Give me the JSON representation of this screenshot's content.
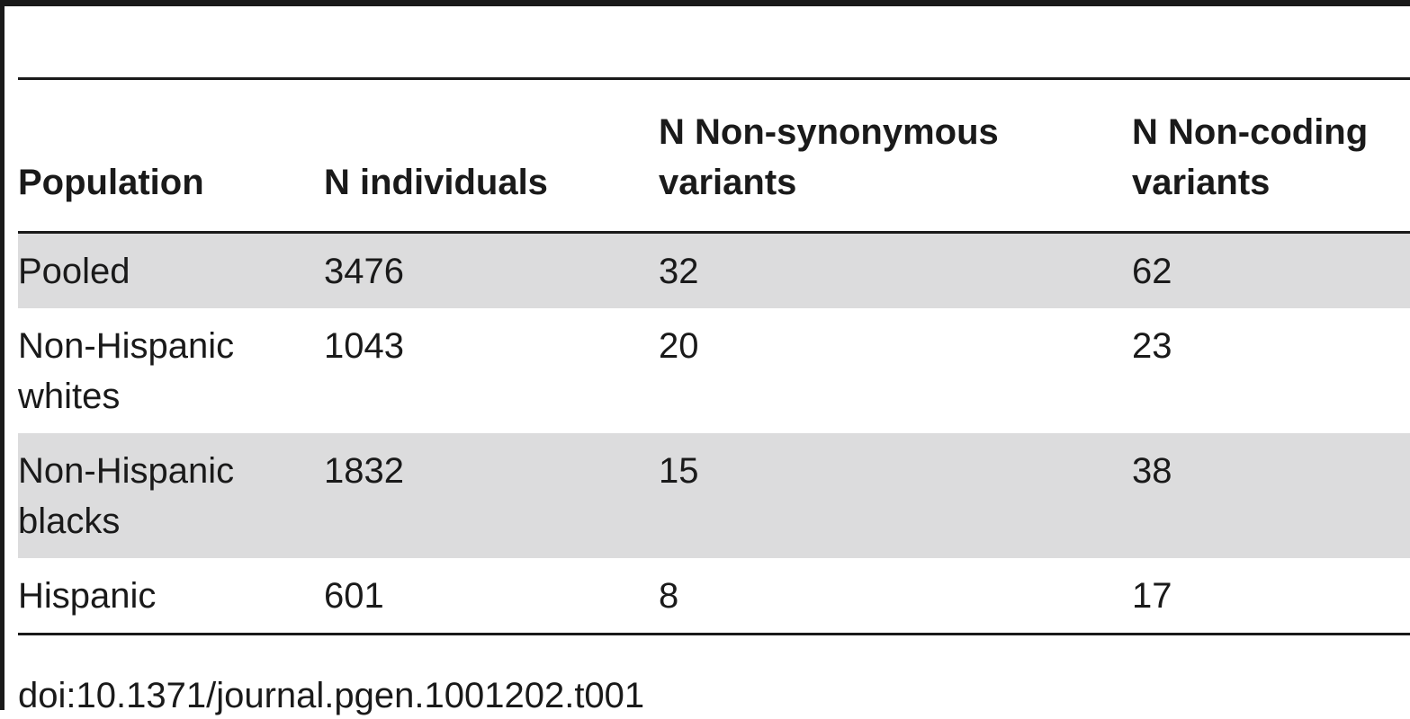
{
  "table": {
    "headers": [
      [
        "Population"
      ],
      [
        "N individuals"
      ],
      [
        "N Non-synonymous",
        "variants"
      ],
      [
        "N Non-coding",
        "variants"
      ]
    ],
    "rows": [
      {
        "cells": [
          [
            "Pooled"
          ],
          "3476",
          "32",
          "62"
        ],
        "shaded": true
      },
      {
        "cells": [
          [
            "Non-Hispanic",
            "whites"
          ],
          "1043",
          "20",
          "23"
        ],
        "shaded": false
      },
      {
        "cells": [
          [
            "Non-Hispanic",
            "blacks"
          ],
          "1832",
          "15",
          "38"
        ],
        "shaded": true
      },
      {
        "cells": [
          [
            "Hispanic"
          ],
          "601",
          "8",
          "17"
        ],
        "shaded": false
      }
    ]
  },
  "footer": {
    "doi": "doi:10.1371/journal.pgen.1001202.t001"
  }
}
